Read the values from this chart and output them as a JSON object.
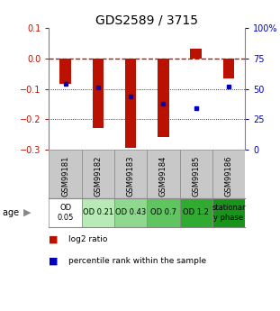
{
  "title": "GDS2589 / 3715",
  "samples": [
    "GSM99181",
    "GSM99182",
    "GSM99183",
    "GSM99184",
    "GSM99185",
    "GSM99186"
  ],
  "log2_ratio_bottom": [
    -0.085,
    -0.23,
    -0.295,
    -0.26,
    0.0,
    -0.065
  ],
  "log2_ratio_top": [
    0.0,
    0.0,
    0.0,
    0.0,
    0.032,
    0.0
  ],
  "percentile_rank_pct": [
    54,
    51,
    44,
    38,
    34,
    52
  ],
  "age_labels": [
    "OD\n0.05",
    "OD 0.21",
    "OD 0.43",
    "OD 0.7",
    "OD 1.2",
    "stationar\ny phase"
  ],
  "age_colors": [
    "#ffffff",
    "#b8eab8",
    "#90d890",
    "#60c460",
    "#30aa30",
    "#18941a"
  ],
  "bar_color": "#bb1100",
  "dot_color": "#0000bb",
  "ylim_left": [
    -0.3,
    0.1
  ],
  "ylim_right": [
    0,
    100
  ],
  "left_yticks": [
    -0.3,
    -0.2,
    -0.1,
    0.0,
    0.1
  ],
  "right_yticks": [
    0,
    25,
    50,
    75,
    100
  ],
  "right_yticklabels": [
    "0",
    "25",
    "50",
    "75",
    "100%"
  ],
  "bar_width": 0.35,
  "label_fontsize": 7,
  "tick_fontsize": 7,
  "title_fontsize": 10,
  "age_fontsize": 6,
  "legend_fontsize": 6.5
}
